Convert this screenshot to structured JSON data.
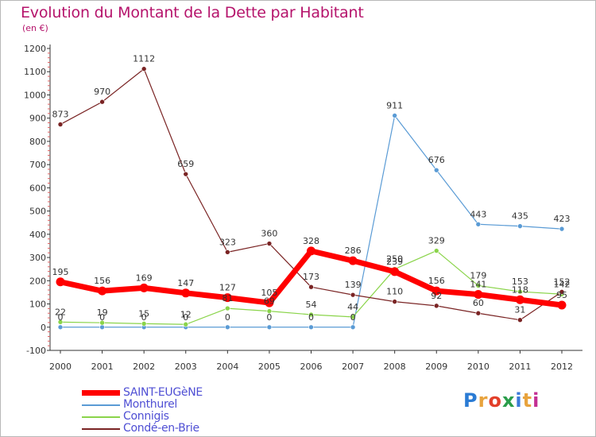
{
  "header": {
    "title": "Evolution du Montant de la Dette par Habitant",
    "unit": "(en €)"
  },
  "logo": {
    "text": "Proxiti",
    "colors": [
      "#2a7bd4",
      "#e8a33d",
      "#e23f2a",
      "#2a9d4a",
      "#3a7ad8",
      "#e8a33d",
      "#c42f93"
    ]
  },
  "chart_data": {
    "type": "line",
    "title": "Evolution du Montant de la Dette par Habitant",
    "ylabel": "(en €)",
    "xlabel": "",
    "x": [
      "2000",
      "2001",
      "2002",
      "2003",
      "2004",
      "2005",
      "2006",
      "2007",
      "2008",
      "2009",
      "2010",
      "2011",
      "2012"
    ],
    "ylim": [
      -100,
      1200
    ],
    "yticks": [
      "-100",
      "0",
      "100",
      "200",
      "300",
      "400",
      "500",
      "600",
      "700",
      "800",
      "900",
      "1000",
      "1100",
      "1200"
    ],
    "grid": false,
    "legend_position": "bottom-left",
    "series": [
      {
        "name": "SAINT-EUGèNE",
        "color": "#ff0000",
        "values": [
          195,
          156,
          169,
          147,
          127,
          105,
          328,
          286,
          239,
          156,
          141,
          118,
          95
        ]
      },
      {
        "name": "Monthurel",
        "color": "#5a9bd5",
        "values": [
          0,
          0,
          0,
          0,
          0,
          0,
          0,
          0,
          911,
          676,
          443,
          435,
          423
        ]
      },
      {
        "name": "Connigis",
        "color": "#8ad44a",
        "values": [
          22,
          19,
          15,
          12,
          81,
          69,
          54,
          44,
          250,
          329,
          179,
          153,
          142
        ]
      },
      {
        "name": "Condé-en-Brie",
        "color": "#7a2424",
        "values": [
          873,
          970,
          1112,
          659,
          323,
          360,
          173,
          139,
          110,
          92,
          60,
          31,
          152
        ]
      }
    ]
  }
}
